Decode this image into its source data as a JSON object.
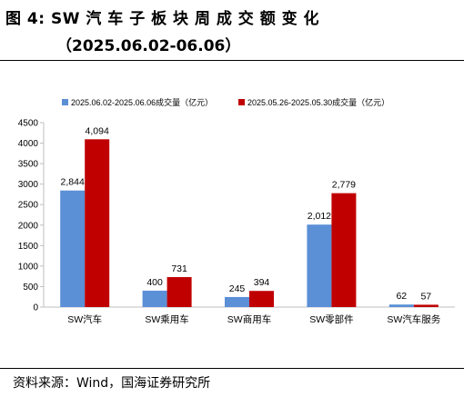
{
  "figure": {
    "title_line1": "图 4:  SW  汽 车 子 板 块 周 成 交 额 变 化",
    "title_line2": "（2025.06.02-06.06）",
    "source": "资料来源：Wind，国海证券研究所"
  },
  "chart_data": {
    "type": "bar",
    "categories": [
      "SW汽车",
      "SW乘用车",
      "SW商用车",
      "SW零部件",
      "SW汽车服务"
    ],
    "series": [
      {
        "name": "2025.06.02-2025.06.06成交量（亿元）",
        "values": [
          2844,
          400,
          245,
          2012,
          62
        ],
        "labels": [
          "2,844",
          "400",
          "245",
          "2,012",
          "62"
        ],
        "color": "#5b8fd6"
      },
      {
        "name": "2025.05.26-2025.05.30成交量（亿元）",
        "values": [
          4094,
          731,
          394,
          2779,
          57
        ],
        "labels": [
          "4,094",
          "731",
          "394",
          "2,779",
          "57"
        ],
        "color": "#c00000"
      }
    ],
    "ylim": [
      0,
      4500
    ],
    "yticks": [
      0,
      500,
      1000,
      1500,
      2000,
      2500,
      3000,
      3500,
      4000,
      4500
    ],
    "grid": false,
    "legend_position": "top"
  }
}
